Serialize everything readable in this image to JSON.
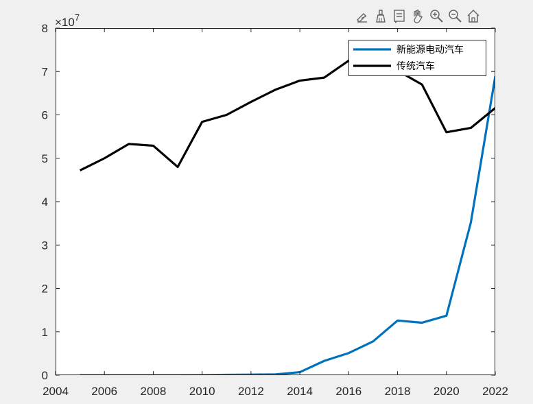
{
  "toolbar": {
    "buttons": [
      {
        "name": "edit-plot-icon",
        "icon": "edit-pencil"
      },
      {
        "name": "brush-icon",
        "icon": "brush"
      },
      {
        "name": "data-tips-icon",
        "icon": "data-tip"
      },
      {
        "name": "pan-icon",
        "icon": "hand"
      },
      {
        "name": "zoom-in-icon",
        "icon": "magnifier-plus"
      },
      {
        "name": "zoom-out-icon",
        "icon": "magnifier-minus"
      },
      {
        "name": "home-icon",
        "icon": "house"
      }
    ]
  },
  "chart_data": {
    "type": "line",
    "title": "",
    "xlabel": "",
    "ylabel": "",
    "y_exponent_label": "×10",
    "y_exponent_power": "7",
    "xlim": [
      2004,
      2022
    ],
    "ylim": [
      0,
      8
    ],
    "y_scale": 10000000,
    "x_ticks": [
      "2004",
      "2006",
      "2008",
      "2010",
      "2012",
      "2014",
      "2016",
      "2018",
      "2020",
      "2022"
    ],
    "y_ticks": [
      "0",
      "1",
      "2",
      "3",
      "4",
      "5",
      "6",
      "7",
      "8"
    ],
    "grid": false,
    "legend_position": "top-right",
    "x": [
      2005,
      2006,
      2007,
      2008,
      2009,
      2010,
      2011,
      2012,
      2013,
      2014,
      2015,
      2016,
      2017,
      2018,
      2019,
      2020,
      2021,
      2022
    ],
    "series": [
      {
        "name": "新能源电动汽车",
        "color": "#0072BD",
        "values": [
          0,
          0,
          0,
          0,
          0,
          0.002,
          0.008,
          0.013,
          0.018,
          0.07,
          0.33,
          0.51,
          0.78,
          1.26,
          1.21,
          1.37,
          3.52,
          6.89
        ]
      },
      {
        "name": "传统汽车",
        "color": "#000000",
        "values": [
          4.72,
          5.0,
          5.33,
          5.29,
          4.8,
          5.84,
          6.0,
          6.3,
          6.58,
          6.79,
          6.86,
          7.25,
          7.32,
          7.02,
          6.7,
          5.6,
          5.7,
          6.16
        ]
      }
    ]
  }
}
